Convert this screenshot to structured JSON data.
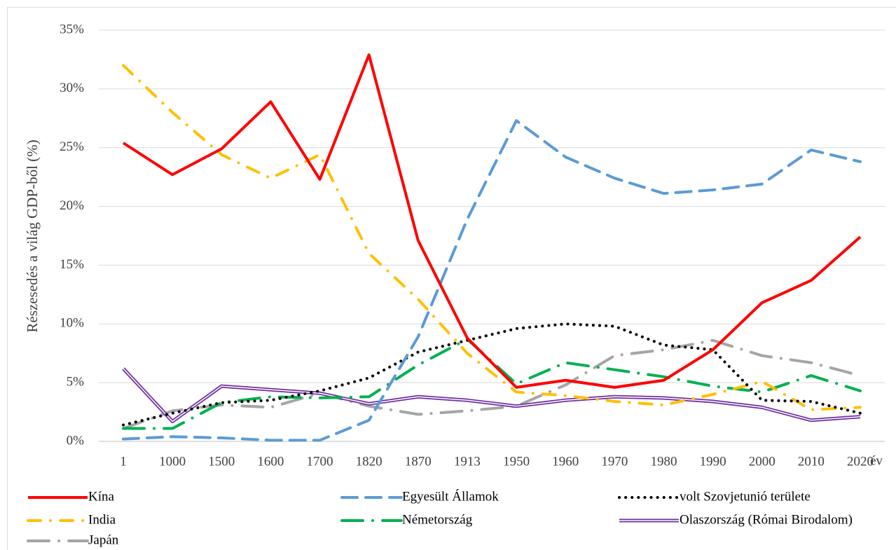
{
  "chart_data": {
    "type": "line",
    "y_label": "Részesedés a világ GDP-ből (%)",
    "x_label": "év",
    "categories": [
      "1",
      "1000",
      "1500",
      "1600",
      "1700",
      "1820",
      "1870",
      "1913",
      "1950",
      "1960",
      "1970",
      "1980",
      "1990",
      "2000",
      "2010",
      "2020"
    ],
    "ylim": [
      0,
      35
    ],
    "yticks": [
      {
        "value": 0,
        "label": "0%"
      },
      {
        "value": 5,
        "label": "5%"
      },
      {
        "value": 10,
        "label": "10%"
      },
      {
        "value": 15,
        "label": "15%"
      },
      {
        "value": 20,
        "label": "20%"
      },
      {
        "value": 25,
        "label": "25%"
      },
      {
        "value": 30,
        "label": "30%"
      },
      {
        "value": 35,
        "label": "35%"
      }
    ],
    "grid": true,
    "legend": "bottom",
    "series": [
      {
        "name": "Kína",
        "color": "#ff0000",
        "style": "solid",
        "values": [
          25.4,
          22.7,
          24.9,
          28.9,
          22.3,
          32.9,
          17.1,
          8.8,
          4.6,
          5.2,
          4.6,
          5.2,
          7.8,
          11.8,
          13.7,
          17.4
        ]
      },
      {
        "name": "Egyesült Államok",
        "color": "#5b9bd5",
        "style": "dashed",
        "values": [
          0.2,
          0.4,
          0.3,
          0.1,
          0.1,
          1.8,
          8.9,
          18.9,
          27.3,
          24.2,
          22.4,
          21.1,
          21.4,
          21.9,
          24.8,
          23.8
        ]
      },
      {
        "name": "volt Szovjetunió területe",
        "color": "#000000",
        "style": "dotted",
        "values": [
          1.4,
          2.4,
          3.3,
          3.5,
          4.3,
          5.4,
          7.6,
          8.6,
          9.6,
          10.0,
          9.8,
          8.2,
          7.8,
          3.5,
          3.4,
          2.4
        ]
      },
      {
        "name": "India",
        "color": "#ffc000",
        "style": "dash-dot",
        "values": [
          32.0,
          28.0,
          24.4,
          22.4,
          24.4,
          16.0,
          12.1,
          7.5,
          4.2,
          3.9,
          3.4,
          3.1,
          4.0,
          5.1,
          2.7,
          2.9
        ]
      },
      {
        "name": "Németország",
        "color": "#00b050",
        "style": "long-dash-dot",
        "values": [
          1.1,
          1.1,
          3.3,
          3.8,
          3.7,
          3.8,
          6.5,
          8.7,
          4.9,
          6.7,
          6.1,
          5.5,
          4.7,
          4.2,
          5.6,
          4.3
        ]
      },
      {
        "name": "Olaszország (Római Birodalom)",
        "color": "#7030a0",
        "style": "double",
        "values": [
          6.2,
          1.7,
          4.7,
          4.4,
          4.1,
          3.2,
          3.8,
          3.5,
          3.0,
          3.5,
          3.8,
          3.7,
          3.4,
          2.9,
          1.8,
          2.1
        ]
      },
      {
        "name": "Japán",
        "color": "#a5a5a5",
        "style": "long-dash-dot",
        "values": [
          1.1,
          2.6,
          3.1,
          2.9,
          4.1,
          3.0,
          2.3,
          2.6,
          3.0,
          4.8,
          7.3,
          7.8,
          8.6,
          7.3,
          6.7,
          5.6
        ]
      }
    ]
  }
}
